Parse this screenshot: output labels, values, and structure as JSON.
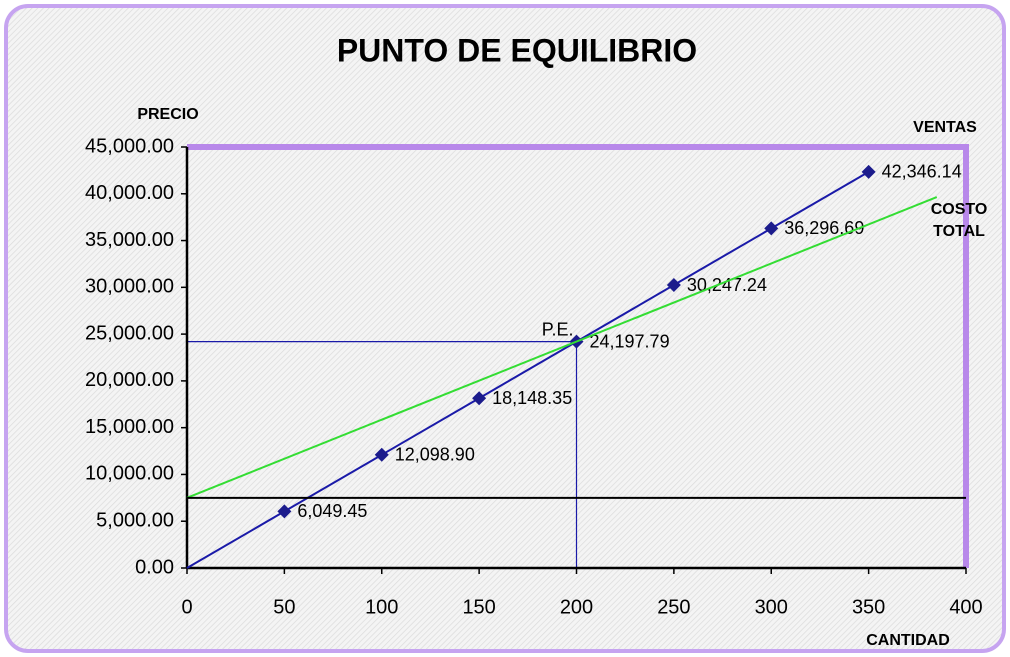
{
  "chart_data": {
    "type": "line",
    "title": "PUNTO DE EQUILIBRIO",
    "ylabel": "PRECIO",
    "xlabel": "CANTIDAD",
    "xlim": [
      0,
      400
    ],
    "xticks": [
      0,
      50,
      100,
      150,
      200,
      250,
      300,
      350,
      400
    ],
    "ylim": [
      0,
      45000
    ],
    "yticks": [
      {
        "value": 0,
        "label": "0.00"
      },
      {
        "value": 5000,
        "label": "5,000.00"
      },
      {
        "value": 10000,
        "label": "10,000.00"
      },
      {
        "value": 15000,
        "label": "15,000.00"
      },
      {
        "value": 20000,
        "label": "20,000.00"
      },
      {
        "value": 25000,
        "label": "25,000.00"
      },
      {
        "value": 30000,
        "label": "30,000.00"
      },
      {
        "value": 35000,
        "label": "35,000.00"
      },
      {
        "value": 40000,
        "label": "40,000.00"
      },
      {
        "value": 45000,
        "label": "45,000.00"
      }
    ],
    "series": [
      {
        "name": "VENTAS",
        "color": "#1a1aa8",
        "markers": true,
        "x": [
          0,
          50,
          100,
          150,
          200,
          250,
          300,
          350
        ],
        "values": [
          0,
          6049.45,
          12098.9,
          18148.35,
          24197.79,
          30247.24,
          36296.69,
          42346.14
        ],
        "value_labels": [
          null,
          "6,049.45",
          "12,098.90",
          "18,148.35",
          "24,197.79",
          "30,247.24",
          "36,296.69",
          "42,346.14"
        ]
      },
      {
        "name": "COSTO TOTAL",
        "color": "#33dd33",
        "markers": false,
        "x": [
          0,
          385
        ],
        "values": [
          7500,
          39650
        ]
      },
      {
        "color": "#000000",
        "markers": false,
        "x": [
          0,
          400
        ],
        "values": [
          7500,
          7500
        ]
      }
    ],
    "annotation": {
      "text": "P.E.",
      "x": 200,
      "y": 24197.79,
      "color": "#1a1aa8"
    }
  }
}
